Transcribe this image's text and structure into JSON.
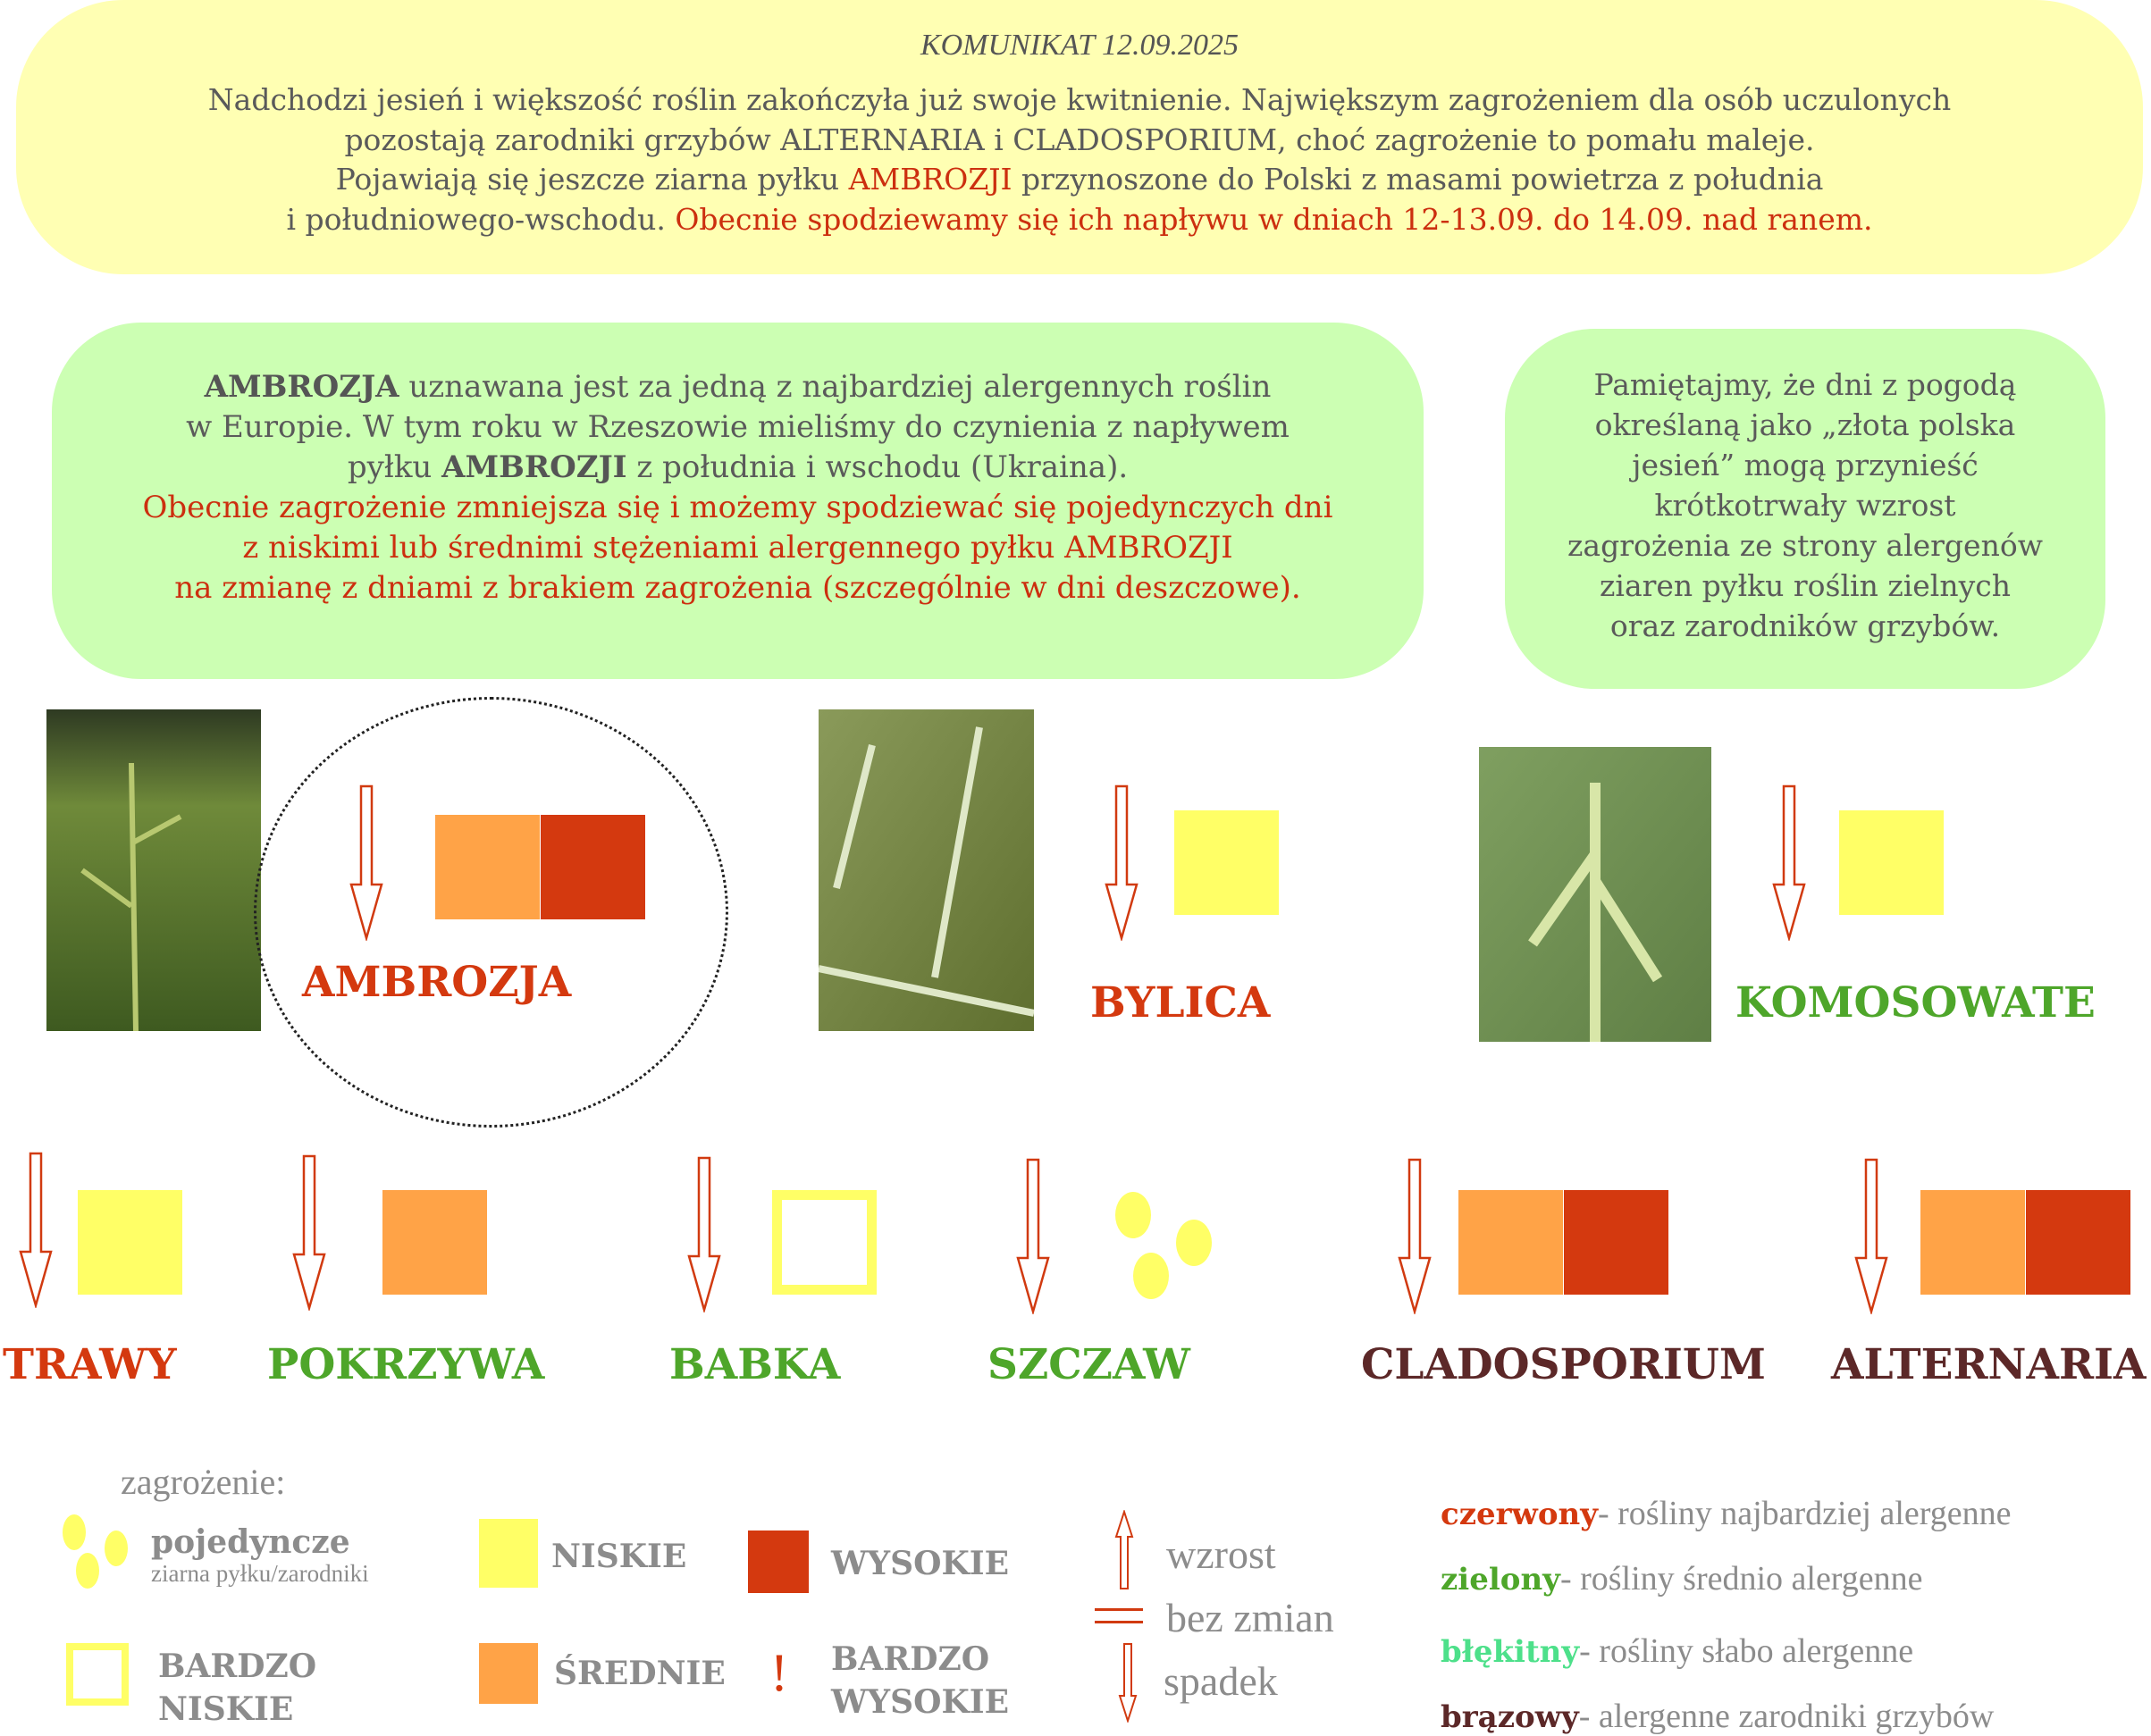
{
  "colors": {
    "low": "#ffff66",
    "medium": "#ffa347",
    "high": "#d4390f",
    "red_text": "#cc2f0f",
    "green_text": "#4ea62a",
    "brown_text": "#5c2828",
    "cyan_text": "#4de08a"
  },
  "announcement": {
    "title": "KOMUNIKAT 12.09.2025",
    "line1": "Nadchodzi jesień i większość roślin zakończyła już swoje kwitnienie. Największym zagrożeniem dla osób uczulonych",
    "line2": "pozostają zarodniki grzybów ALTERNARIA i CLADOSPORIUM, choć zagrożenie to pomału maleje.",
    "line3a": "Pojawiają się jeszcze ziarna pyłku ",
    "line3b": "AMBROZJI",
    "line3c": " przynoszone do Polski z masami powietrza z południa",
    "line4a": "i południowego-wschodu. ",
    "line4b": "Obecnie spodziewamy się ich napływu w dniach 12-13.09. do 14.09. nad ranem."
  },
  "ambrosia_box": {
    "l1a": "AMBROZJA",
    "l1b": " uznawana jest za jedną z najbardziej alergennych roślin",
    "l2": "w Europie. W tym roku w Rzeszowie mieliśmy do czynienia z napływem",
    "l3a": "pyłku ",
    "l3b": "AMBROZJI",
    "l3c": " z południa i wschodu (Ukraina).",
    "l4": "Obecnie zagrożenie zmniejsza się i możemy spodziewać się pojedynczych dni",
    "l5": "z niskimi lub średnimi stężeniami alergennego pyłku AMBROZJI",
    "l6": "na zmianę z dniami z brakiem zagrożenia (szczególnie w dni deszczowe)."
  },
  "autumn_box": {
    "lines": [
      "Pamiętajmy, że dni z pogodą",
      "określaną jako „złota polska",
      "jesień” mogą przynieść",
      "krótkotrwały wzrost",
      "zagrożenia ze strony alergenów",
      "ziaren pyłku roślin zielnych",
      "oraz zarodników grzybów."
    ]
  },
  "plants": [
    {
      "name": "AMBROZJA",
      "trend": "spadek",
      "levels": [
        "średnie",
        "wysokie"
      ],
      "color": "red"
    },
    {
      "name": "BYLICA",
      "trend": "spadek",
      "levels": [
        "niskie"
      ],
      "color": "red"
    },
    {
      "name": "KOMOSOWATE",
      "trend": "spadek",
      "levels": [
        "niskie"
      ],
      "color": "green"
    },
    {
      "name": "TRAWY",
      "trend": "spadek",
      "levels": [
        "niskie"
      ],
      "color": "red"
    },
    {
      "name": "POKRZYWA",
      "trend": "spadek",
      "levels": [
        "średnie"
      ],
      "color": "green"
    },
    {
      "name": "BABKA",
      "trend": "spadek",
      "levels": [
        "bardzo niskie"
      ],
      "color": "green"
    },
    {
      "name": "SZCZAW",
      "trend": "spadek",
      "levels": [
        "pojedyncze"
      ],
      "color": "green"
    },
    {
      "name": "CLADOSPORIUM",
      "trend": "spadek",
      "levels": [
        "średnie",
        "wysokie"
      ],
      "color": "brown"
    },
    {
      "name": "ALTERNARIA",
      "trend": "spadek",
      "levels": [
        "średnie",
        "wysokie"
      ],
      "color": "brown"
    }
  ],
  "legend": {
    "heading": "zagrożenie:",
    "single": "pojedyncze",
    "single_sub": "ziarna pyłku/zarodniki",
    "low": "NISKIE",
    "high": "WYSOKIE",
    "very_low_1": "BARDZO",
    "very_low_2": "NISKIE",
    "medium": "ŚREDNIE",
    "very_high_mark": "!",
    "very_high_1": "BARDZO",
    "very_high_2": "WYSOKIE",
    "up": "wzrost",
    "same": "bez zmian",
    "down": "spadek",
    "colors": [
      {
        "k": "czerwony",
        "v": "- rośliny najbardziej alergenne"
      },
      {
        "k": "zielony",
        "v": "- rośliny średnio alergenne"
      },
      {
        "k": "błękitny",
        "v": "- rośliny słabo alergenne"
      },
      {
        "k": "brązowy",
        "v": "- alergenne zarodniki grzybów"
      }
    ]
  }
}
